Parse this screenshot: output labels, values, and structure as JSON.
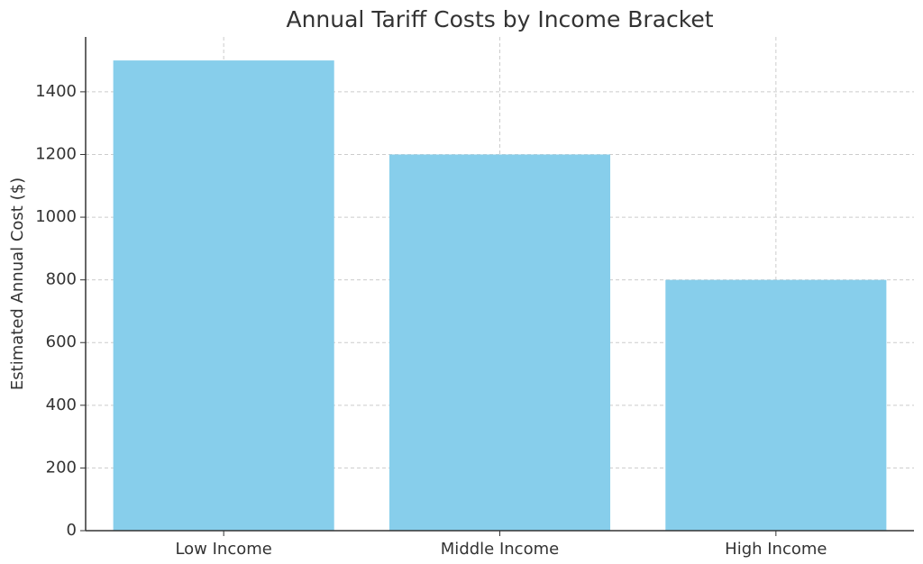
{
  "chart_data": {
    "type": "bar",
    "title": "Annual Tariff Costs by Income Bracket",
    "xlabel": "",
    "ylabel": "Estimated Annual Cost ($)",
    "categories": [
      "Low Income",
      "Middle Income",
      "High Income"
    ],
    "values": [
      1500,
      1200,
      800
    ],
    "ylim": [
      0,
      1575
    ],
    "yticks": [
      0,
      200,
      400,
      600,
      800,
      1000,
      1200,
      1400
    ],
    "grid": true,
    "bar_color": "#87CEEB",
    "grid_color": "#cccccc",
    "axis_color": "#333333",
    "text_color": "#333333"
  }
}
